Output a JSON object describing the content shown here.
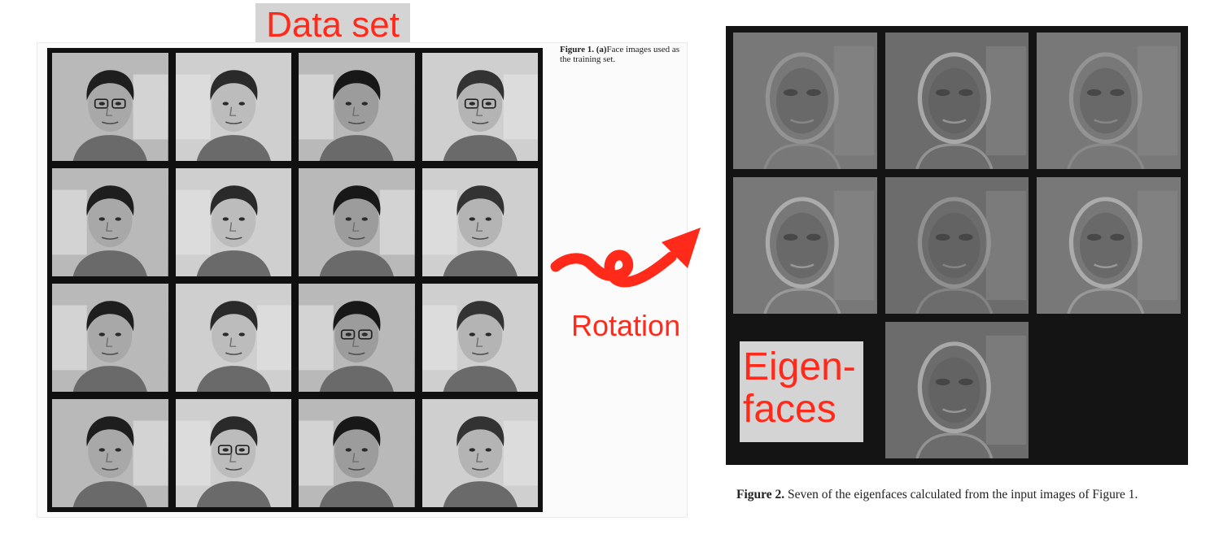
{
  "labels": {
    "dataset": "Data set",
    "rotation": "Rotation",
    "eigenfaces_line1": "Eigen-",
    "eigenfaces_line2": "faces"
  },
  "figure1": {
    "caption_bold": "Figure 1.",
    "caption_tag": "(a)",
    "caption_text": "Face images used as the training set.",
    "tile_count": 16
  },
  "figure2": {
    "caption_bold": "Figure 2.",
    "caption_text": "Seven of the eigenfaces calculated from the input images of Figure 1.",
    "tile_count": 7
  },
  "colors": {
    "accent": "#ff2a1a",
    "label_background": "#d4d4d4",
    "grid_border": "#101010"
  }
}
